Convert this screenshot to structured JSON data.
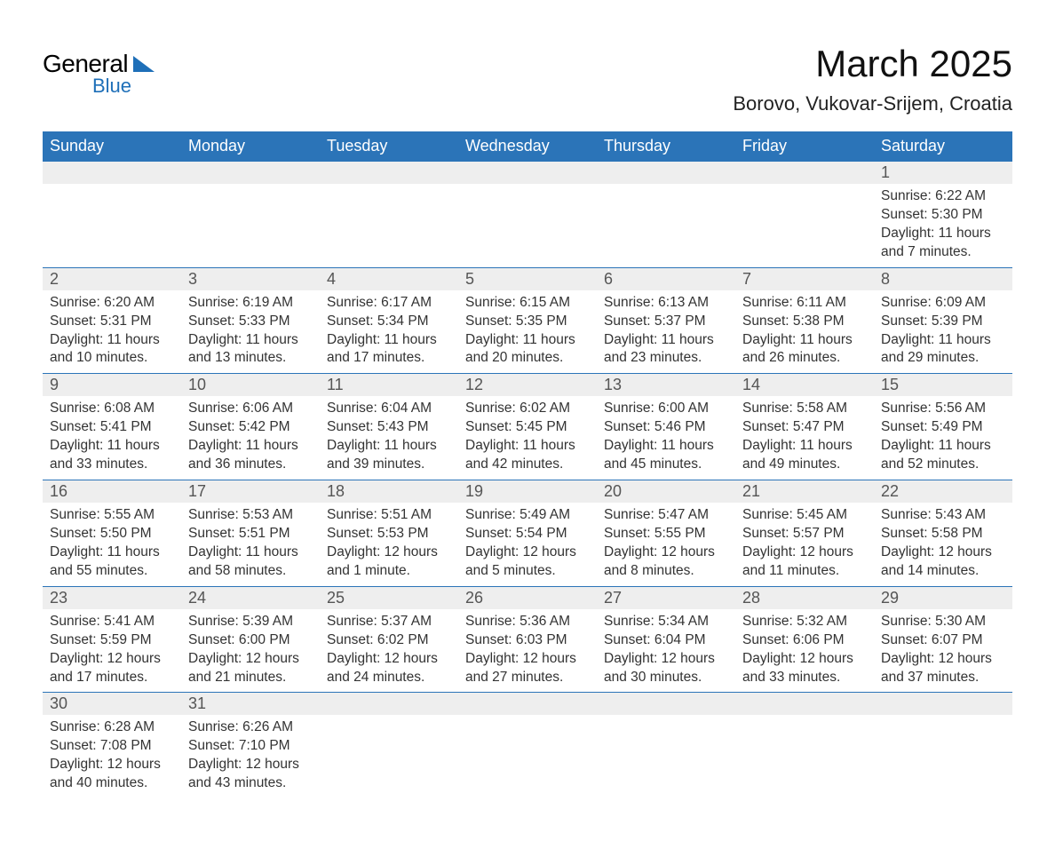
{
  "branding": {
    "logo_general": "General",
    "logo_blue": "Blue"
  },
  "header": {
    "month_title": "March 2025",
    "location": "Borovo, Vukovar-Srijem, Croatia"
  },
  "colors": {
    "header_bg": "#2b74b8",
    "header_text": "#ffffff",
    "daynum_bg": "#eeeeee",
    "daynum_text": "#555555",
    "body_text": "#333333",
    "rule": "#2b74b8",
    "logo_accent": "#1e6fb8"
  },
  "typography": {
    "title_fontsize_pt": 32,
    "location_fontsize_pt": 17,
    "dayheader_fontsize_pt": 14,
    "daynum_fontsize_pt": 14,
    "cell_fontsize_pt": 12
  },
  "calendar": {
    "type": "table",
    "day_headers": [
      "Sunday",
      "Monday",
      "Tuesday",
      "Wednesday",
      "Thursday",
      "Friday",
      "Saturday"
    ],
    "labels": {
      "sunrise": "Sunrise:",
      "sunset": "Sunset:",
      "daylight": "Daylight:"
    },
    "weeks": [
      [
        null,
        null,
        null,
        null,
        null,
        null,
        {
          "n": "1",
          "sunrise": "6:22 AM",
          "sunset": "5:30 PM",
          "daylight": "11 hours and 7 minutes."
        }
      ],
      [
        {
          "n": "2",
          "sunrise": "6:20 AM",
          "sunset": "5:31 PM",
          "daylight": "11 hours and 10 minutes."
        },
        {
          "n": "3",
          "sunrise": "6:19 AM",
          "sunset": "5:33 PM",
          "daylight": "11 hours and 13 minutes."
        },
        {
          "n": "4",
          "sunrise": "6:17 AM",
          "sunset": "5:34 PM",
          "daylight": "11 hours and 17 minutes."
        },
        {
          "n": "5",
          "sunrise": "6:15 AM",
          "sunset": "5:35 PM",
          "daylight": "11 hours and 20 minutes."
        },
        {
          "n": "6",
          "sunrise": "6:13 AM",
          "sunset": "5:37 PM",
          "daylight": "11 hours and 23 minutes."
        },
        {
          "n": "7",
          "sunrise": "6:11 AM",
          "sunset": "5:38 PM",
          "daylight": "11 hours and 26 minutes."
        },
        {
          "n": "8",
          "sunrise": "6:09 AM",
          "sunset": "5:39 PM",
          "daylight": "11 hours and 29 minutes."
        }
      ],
      [
        {
          "n": "9",
          "sunrise": "6:08 AM",
          "sunset": "5:41 PM",
          "daylight": "11 hours and 33 minutes."
        },
        {
          "n": "10",
          "sunrise": "6:06 AM",
          "sunset": "5:42 PM",
          "daylight": "11 hours and 36 minutes."
        },
        {
          "n": "11",
          "sunrise": "6:04 AM",
          "sunset": "5:43 PM",
          "daylight": "11 hours and 39 minutes."
        },
        {
          "n": "12",
          "sunrise": "6:02 AM",
          "sunset": "5:45 PM",
          "daylight": "11 hours and 42 minutes."
        },
        {
          "n": "13",
          "sunrise": "6:00 AM",
          "sunset": "5:46 PM",
          "daylight": "11 hours and 45 minutes."
        },
        {
          "n": "14",
          "sunrise": "5:58 AM",
          "sunset": "5:47 PM",
          "daylight": "11 hours and 49 minutes."
        },
        {
          "n": "15",
          "sunrise": "5:56 AM",
          "sunset": "5:49 PM",
          "daylight": "11 hours and 52 minutes."
        }
      ],
      [
        {
          "n": "16",
          "sunrise": "5:55 AM",
          "sunset": "5:50 PM",
          "daylight": "11 hours and 55 minutes."
        },
        {
          "n": "17",
          "sunrise": "5:53 AM",
          "sunset": "5:51 PM",
          "daylight": "11 hours and 58 minutes."
        },
        {
          "n": "18",
          "sunrise": "5:51 AM",
          "sunset": "5:53 PM",
          "daylight": "12 hours and 1 minute."
        },
        {
          "n": "19",
          "sunrise": "5:49 AM",
          "sunset": "5:54 PM",
          "daylight": "12 hours and 5 minutes."
        },
        {
          "n": "20",
          "sunrise": "5:47 AM",
          "sunset": "5:55 PM",
          "daylight": "12 hours and 8 minutes."
        },
        {
          "n": "21",
          "sunrise": "5:45 AM",
          "sunset": "5:57 PM",
          "daylight": "12 hours and 11 minutes."
        },
        {
          "n": "22",
          "sunrise": "5:43 AM",
          "sunset": "5:58 PM",
          "daylight": "12 hours and 14 minutes."
        }
      ],
      [
        {
          "n": "23",
          "sunrise": "5:41 AM",
          "sunset": "5:59 PM",
          "daylight": "12 hours and 17 minutes."
        },
        {
          "n": "24",
          "sunrise": "5:39 AM",
          "sunset": "6:00 PM",
          "daylight": "12 hours and 21 minutes."
        },
        {
          "n": "25",
          "sunrise": "5:37 AM",
          "sunset": "6:02 PM",
          "daylight": "12 hours and 24 minutes."
        },
        {
          "n": "26",
          "sunrise": "5:36 AM",
          "sunset": "6:03 PM",
          "daylight": "12 hours and 27 minutes."
        },
        {
          "n": "27",
          "sunrise": "5:34 AM",
          "sunset": "6:04 PM",
          "daylight": "12 hours and 30 minutes."
        },
        {
          "n": "28",
          "sunrise": "5:32 AM",
          "sunset": "6:06 PM",
          "daylight": "12 hours and 33 minutes."
        },
        {
          "n": "29",
          "sunrise": "5:30 AM",
          "sunset": "6:07 PM",
          "daylight": "12 hours and 37 minutes."
        }
      ],
      [
        {
          "n": "30",
          "sunrise": "6:28 AM",
          "sunset": "7:08 PM",
          "daylight": "12 hours and 40 minutes."
        },
        {
          "n": "31",
          "sunrise": "6:26 AM",
          "sunset": "7:10 PM",
          "daylight": "12 hours and 43 minutes."
        },
        null,
        null,
        null,
        null,
        null
      ]
    ]
  }
}
